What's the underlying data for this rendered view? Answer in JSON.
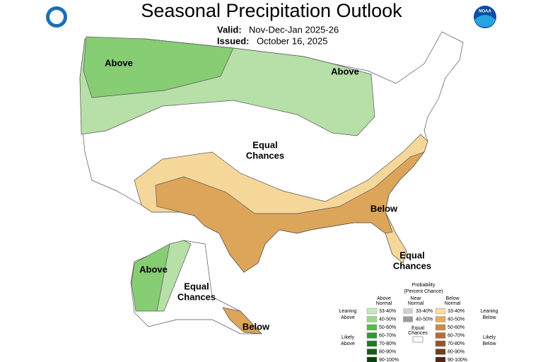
{
  "header": {
    "title": "Seasonal Precipitation Outlook",
    "valid_label": "Valid:",
    "valid": "Nov-Dec-Jan 2025-26",
    "issued_label": "Issued:",
    "issued": "October 16, 2025",
    "noaa_logo": "NOAA"
  },
  "map_labels": [
    [
      "Above"
    ],
    [
      "Above"
    ],
    [
      "Equal",
      "Chances"
    ],
    [
      "Below"
    ],
    [
      "Equal",
      "Chances"
    ],
    [
      "Above"
    ],
    [
      "Equal",
      "Chances"
    ],
    [
      "Below"
    ]
  ],
  "legend": {
    "title": [
      "Probability",
      "(Percent Chance)"
    ],
    "columns": [
      [
        "Above",
        "Normal"
      ],
      [
        "Near",
        "Normal"
      ],
      [
        "Below",
        "Normal"
      ]
    ],
    "above": [
      "33-40%",
      "40-50%",
      "50-60%",
      "60-70%",
      "70-80%",
      "80-90%",
      "90-100%"
    ],
    "near": [
      "33-40%",
      "40-50%"
    ],
    "equal": [
      "Equal",
      "Chances"
    ],
    "below": [
      "33-40%",
      "40-50%",
      "50-60%",
      "60-70%",
      "70-80%",
      "80-90%",
      "90-100%"
    ],
    "left_labels": [
      [
        "Leaning",
        "Above"
      ],
      [
        "Likely",
        "Above"
      ]
    ],
    "right_labels": [
      [
        "Leaning",
        "Below"
      ],
      [
        "Likely",
        "Below"
      ]
    ]
  }
}
